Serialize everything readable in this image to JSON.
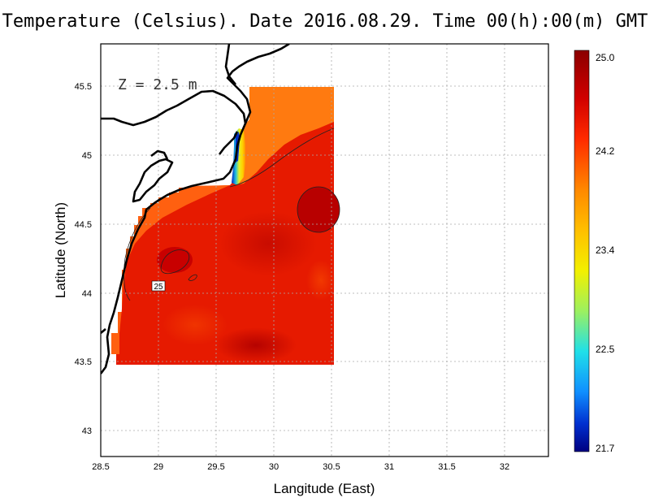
{
  "title": "Temperature (Celsius). Date 2016.08.29. Time 00(h):00(m) GMT",
  "depth_label": "Z = 2.5 m",
  "contour_label": "25",
  "chart_data": {
    "type": "heatmap",
    "title": "Temperature (Celsius). Date 2016.08.29. Time 00(h):00(m) GMT",
    "xlabel": "Langitude (East)",
    "ylabel": "Latitude (North)",
    "xlim": [
      28.5,
      32.4
    ],
    "ylim": [
      42.8,
      45.8
    ],
    "x_ticks": [
      "28.5",
      "29",
      "29.5",
      "30",
      "30.5",
      "31",
      "31.5",
      "32"
    ],
    "y_ticks": [
      "43",
      "43.5",
      "44",
      "44.5",
      "45",
      "45.5"
    ],
    "grid": true,
    "data_extent": {
      "lon": [
        28.65,
        30.52
      ],
      "lat": [
        43.48,
        45.5
      ]
    },
    "colorbar": {
      "min": 21.7,
      "max": 25.0,
      "ticks": [
        "25.0",
        "24.2",
        "23.4",
        "22.5",
        "21.7"
      ]
    },
    "contour_level": 25,
    "value_min": 21.7,
    "value_max": 25.0
  }
}
